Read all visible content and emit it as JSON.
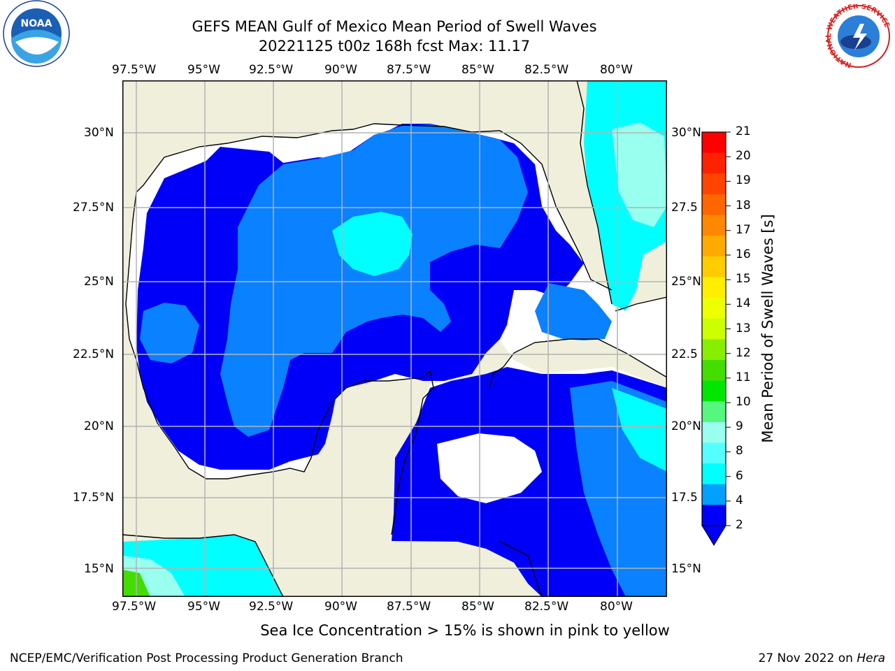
{
  "title": {
    "line1": "GEFS MEAN Gulf of Mexico Mean Period of Swell Waves",
    "line2": "20221125 t00z 168h fcst   Max: 11.17"
  },
  "map": {
    "lon_labels": [
      "97.5°W",
      "95°W",
      "92.5°W",
      "90°W",
      "87.5°W",
      "85°W",
      "82.5°W",
      "80°W"
    ],
    "lat_labels": [
      "30°N",
      "27.5°N",
      "25°N",
      "22.5°N",
      "20°N",
      "17.5°N",
      "15°N"
    ],
    "lat_labels_right": [
      "30°N",
      "27.5",
      "25°N",
      "22.5",
      "20°N",
      "17.5",
      "15°N"
    ],
    "extent": {
      "lon_min": -98,
      "lon_max": -78.2,
      "lat_min": 14,
      "lat_max": 31.6
    },
    "land_color": "#efefdc",
    "ocean_color": "#ffffff",
    "grid_color": "#b4b4b4"
  },
  "colorbar": {
    "label": "Mean Period of Swell Waves [s]",
    "ticks": [
      "21",
      "20",
      "19",
      "18",
      "17",
      "16",
      "15",
      "14",
      "13",
      "12",
      "11",
      "10",
      "9",
      "8",
      "6",
      "4",
      "2"
    ],
    "colors": [
      "#ff0000",
      "#ff2200",
      "#ff4400",
      "#ff6600",
      "#ff8800",
      "#ffaa00",
      "#ffcc00",
      "#ffee00",
      "#eeff00",
      "#ccff00",
      "#88ee00",
      "#44dd00",
      "#00e600",
      "#55f77f",
      "#99ffee",
      "#55ffff",
      "#00ffff",
      "#00a0ff",
      "#0000f8"
    ]
  },
  "note": "Sea Ice Concentration > 15% is shown in pink to yellow",
  "footer": {
    "left": "NCEP/EMC/Verification Post Processing Product Generation Branch",
    "right_date": "27 Nov 2022 on ",
    "right_host": "Hera"
  },
  "logos": {
    "noaa_text": "NOAA",
    "nws_ring_text": "NATIONAL WEATHER SERVICE"
  }
}
